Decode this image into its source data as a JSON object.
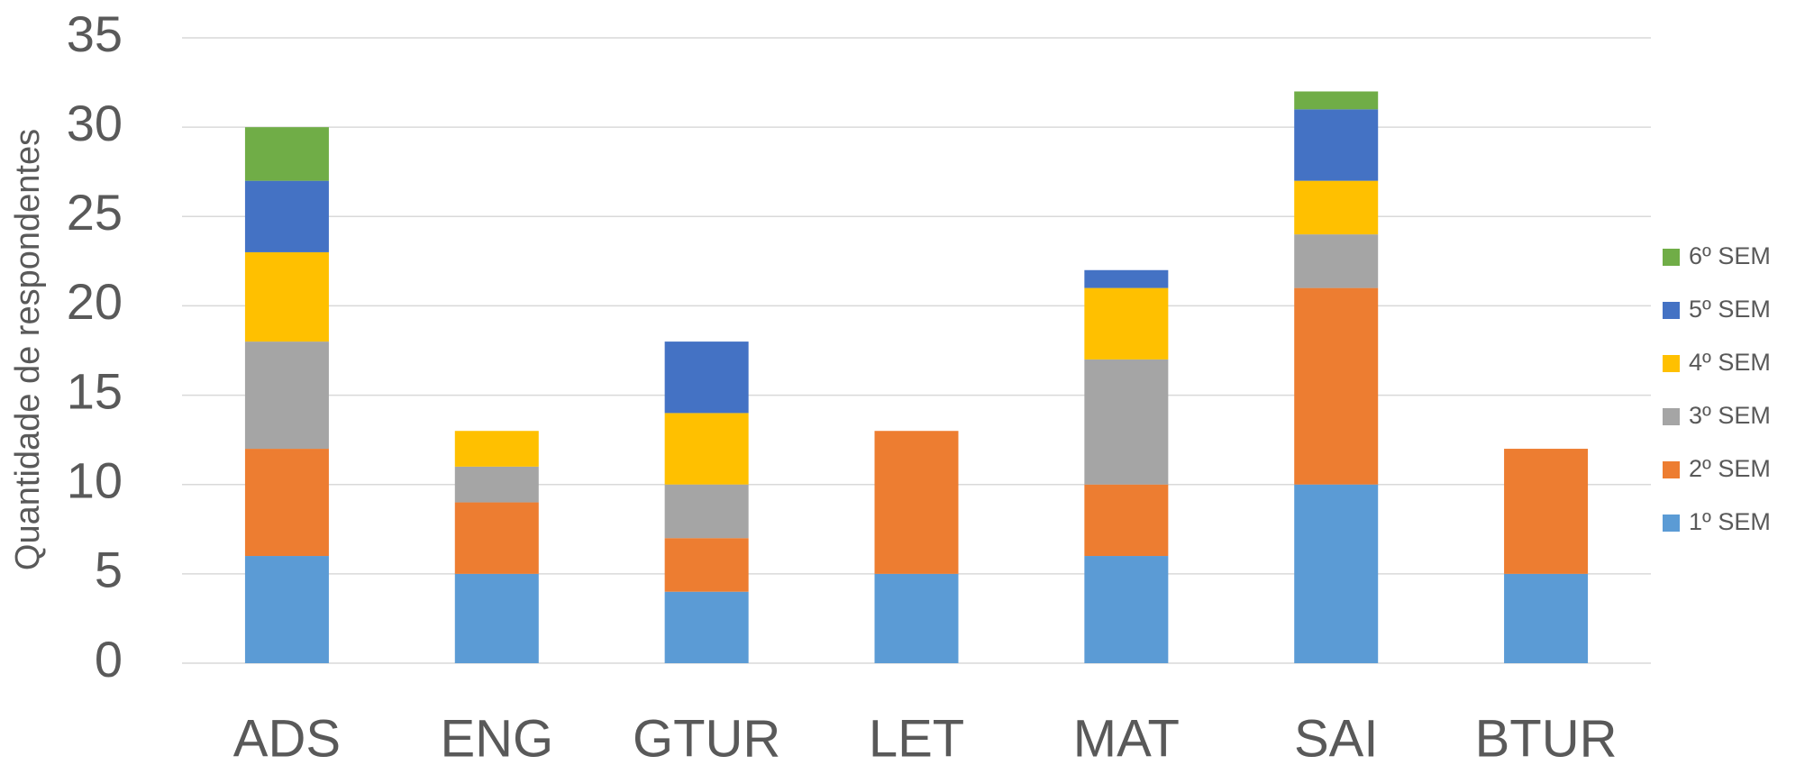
{
  "chart_data": {
    "type": "stacked_bar",
    "y_axis_label": "Quantidade de respondentes",
    "categories": [
      "ADS",
      "ENG",
      "GTUR",
      "LET",
      "MAT",
      "SAI",
      "BTUR"
    ],
    "series": [
      {
        "name": "1º SEM",
        "color": "#5b9bd5",
        "values": [
          6,
          5,
          4,
          5,
          6,
          10,
          5
        ]
      },
      {
        "name": "2º SEM",
        "color": "#ed7d31",
        "values": [
          6,
          4,
          3,
          8,
          4,
          11,
          7
        ]
      },
      {
        "name": "3º SEM",
        "color": "#a5a5a5",
        "values": [
          6,
          2,
          3,
          0,
          7,
          3,
          0
        ]
      },
      {
        "name": "4º SEM",
        "color": "#ffc000",
        "values": [
          5,
          2,
          4,
          0,
          4,
          3,
          0
        ]
      },
      {
        "name": "5º SEM",
        "color": "#4472c4",
        "values": [
          4,
          0,
          4,
          0,
          1,
          4,
          0
        ]
      },
      {
        "name": "6º SEM",
        "color": "#70ad47",
        "values": [
          3,
          0,
          0,
          0,
          0,
          1,
          0
        ]
      }
    ],
    "ylim": [
      0,
      35
    ],
    "yticks": [
      0,
      5,
      10,
      15,
      20,
      25,
      30,
      35
    ],
    "grid": true,
    "legend": "right"
  }
}
